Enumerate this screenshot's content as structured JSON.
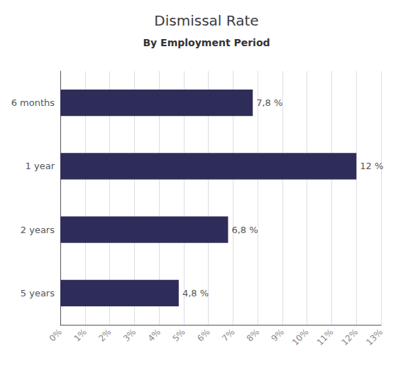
{
  "chart_data": {
    "type": "bar",
    "orientation": "horizontal",
    "title": "Dismissal Rate",
    "subtitle": "By Employment Period",
    "categories": [
      "5 years",
      "2 years",
      "1 year",
      "6 months"
    ],
    "values": [
      4.8,
      6.8,
      12.0,
      7.8
    ],
    "value_labels": [
      "4,8 %",
      "6,8 %",
      "12 %",
      "7,8 %"
    ],
    "data_labels": true,
    "color": "#2e2d5a",
    "xlim": [
      0,
      13
    ],
    "xticks": [
      {
        "value": 0,
        "label": "0%"
      },
      {
        "value": 1,
        "label": "1%"
      },
      {
        "value": 2,
        "label": "2%"
      },
      {
        "value": 3,
        "label": "3%"
      },
      {
        "value": 4,
        "label": "4%"
      },
      {
        "value": 5,
        "label": "5%"
      },
      {
        "value": 6,
        "label": "6%"
      },
      {
        "value": 7,
        "label": "7%"
      },
      {
        "value": 8,
        "label": "8%"
      },
      {
        "value": 9,
        "label": "9%"
      },
      {
        "value": 10,
        "label": "10%"
      },
      {
        "value": 11,
        "label": "11%"
      },
      {
        "value": 12,
        "label": "12%"
      },
      {
        "value": 13,
        "label": "13%"
      }
    ],
    "grid": true
  }
}
